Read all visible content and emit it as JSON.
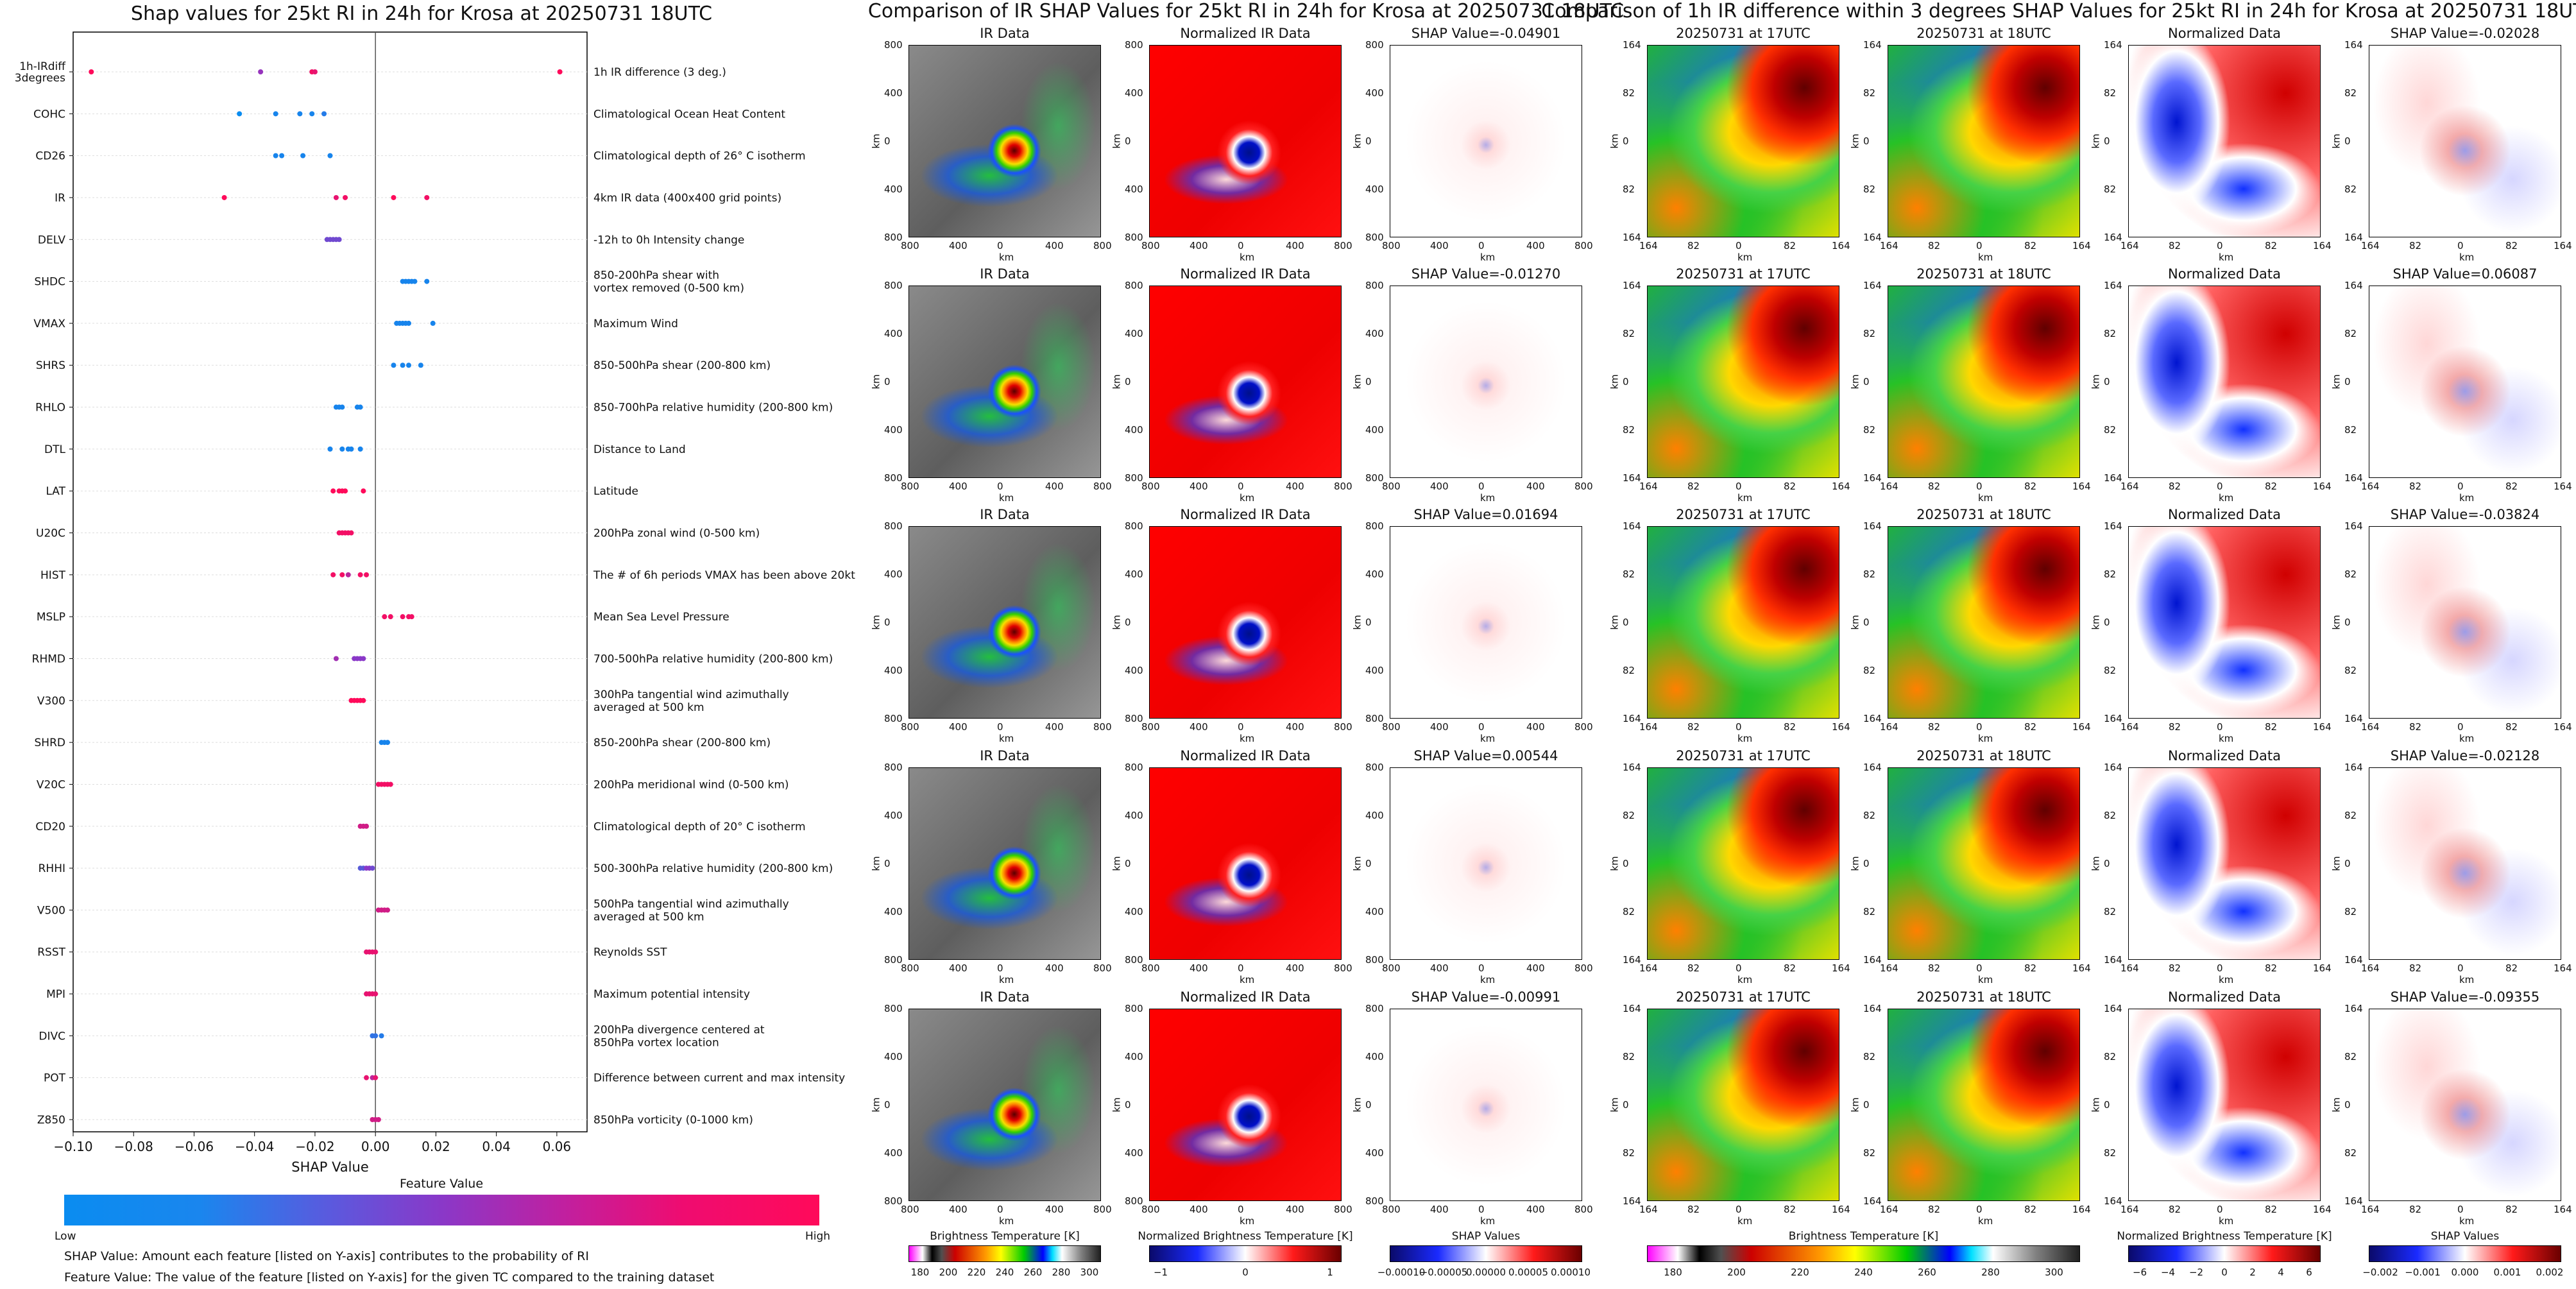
{
  "titles": {
    "left": "Shap values for 25kt RI in 24h for Krosa at 20250731 18UTC",
    "middle": "Comparison of IR SHAP Values for 25kt RI in 24h for Krosa at 20250731 18UTC",
    "right": "Comparison of 1h IR difference within 3 degrees SHAP Values for 25kt RI in 24h for Krosa at 20250731 18UTC"
  },
  "chart_data": [
    {
      "type": "scatter",
      "title": "Shap values for 25kt RI in 24h for Krosa at 20250731 18UTC",
      "xlabel": "SHAP Value",
      "ylabel": "",
      "xlim": [
        -0.1,
        0.07
      ],
      "xticks": [
        "−0.10",
        "−0.08",
        "−0.06",
        "−0.04",
        "−0.02",
        "0.00",
        "0.02",
        "0.04",
        "0.06"
      ],
      "xtick_values": [
        -0.1,
        -0.08,
        -0.06,
        -0.04,
        -0.02,
        0.0,
        0.02,
        0.04,
        0.06
      ],
      "color_low": "#0a8cf0",
      "color_high": "#ff0a5a",
      "features": [
        {
          "name": "1h-IRdiff\n3degrees",
          "desc": "1h IR difference (3 deg.)",
          "points": [
            [
              -0.094,
              1.0
            ],
            [
              -0.038,
              0.55
            ],
            [
              -0.021,
              0.95
            ],
            [
              -0.02,
              0.9
            ],
            [
              0.061,
              1.0
            ]
          ]
        },
        {
          "name": "COHC",
          "desc": "Climatological Ocean Heat Content",
          "points": [
            [
              -0.045,
              0.0
            ],
            [
              -0.033,
              0.05
            ],
            [
              -0.025,
              0.05
            ],
            [
              -0.021,
              0.05
            ],
            [
              -0.017,
              0.1
            ]
          ]
        },
        {
          "name": "CD26",
          "desc": "Climatological depth of 26° C isotherm",
          "points": [
            [
              -0.033,
              0.05
            ],
            [
              -0.031,
              0.05
            ],
            [
              -0.024,
              0.05
            ],
            [
              -0.015,
              0.05
            ]
          ]
        },
        {
          "name": "IR",
          "desc": "4km IR data (400x400 grid points)",
          "points": [
            [
              -0.05,
              1.0
            ],
            [
              -0.013,
              0.9
            ],
            [
              -0.01,
              0.95
            ],
            [
              0.006,
              1.0
            ],
            [
              0.017,
              0.95
            ]
          ]
        },
        {
          "name": "DELV",
          "desc": "-12h to 0h Intensity change",
          "points": [
            [
              -0.016,
              0.4
            ],
            [
              -0.015,
              0.4
            ],
            [
              -0.014,
              0.4
            ],
            [
              -0.013,
              0.4
            ],
            [
              -0.012,
              0.4
            ]
          ]
        },
        {
          "name": "SHDC",
          "desc": "850-200hPa shear with\nvortex removed (0-500 km)",
          "points": [
            [
              0.009,
              0.05
            ],
            [
              0.01,
              0.05
            ],
            [
              0.011,
              0.05
            ],
            [
              0.012,
              0.05
            ],
            [
              0.013,
              0.05
            ],
            [
              0.017,
              0.05
            ]
          ]
        },
        {
          "name": "VMAX",
          "desc": "Maximum Wind",
          "points": [
            [
              0.007,
              0.05
            ],
            [
              0.008,
              0.05
            ],
            [
              0.009,
              0.05
            ],
            [
              0.01,
              0.05
            ],
            [
              0.011,
              0.05
            ],
            [
              0.019,
              0.05
            ]
          ]
        },
        {
          "name": "SHRS",
          "desc": "850-500hPa shear (200-800 km)",
          "points": [
            [
              0.006,
              0.05
            ],
            [
              0.009,
              0.05
            ],
            [
              0.011,
              0.05
            ],
            [
              0.015,
              0.05
            ]
          ]
        },
        {
          "name": "RHLO",
          "desc": "850-700hPa relative humidity (200-800 km)",
          "points": [
            [
              -0.013,
              0.05
            ],
            [
              -0.012,
              0.05
            ],
            [
              -0.011,
              0.05
            ],
            [
              -0.006,
              0.05
            ],
            [
              -0.005,
              0.05
            ]
          ]
        },
        {
          "name": "DTL",
          "desc": "Distance to Land",
          "points": [
            [
              -0.015,
              0.05
            ],
            [
              -0.011,
              0.05
            ],
            [
              -0.009,
              0.05
            ],
            [
              -0.008,
              0.05
            ],
            [
              -0.005,
              0.05
            ]
          ]
        },
        {
          "name": "LAT",
          "desc": "Latitude",
          "points": [
            [
              -0.014,
              1.0
            ],
            [
              -0.012,
              1.0
            ],
            [
              -0.011,
              1.0
            ],
            [
              -0.01,
              1.0
            ],
            [
              -0.004,
              1.0
            ]
          ]
        },
        {
          "name": "U20C",
          "desc": "200hPa zonal wind (0-500 km)",
          "points": [
            [
              -0.012,
              0.95
            ],
            [
              -0.011,
              0.95
            ],
            [
              -0.01,
              0.95
            ],
            [
              -0.009,
              0.95
            ],
            [
              -0.008,
              0.95
            ]
          ]
        },
        {
          "name": "HIST",
          "desc": "The # of 6h periods VMAX has been above 20kt",
          "points": [
            [
              -0.014,
              0.95
            ],
            [
              -0.011,
              0.95
            ],
            [
              -0.009,
              0.7
            ],
            [
              -0.005,
              0.95
            ],
            [
              -0.003,
              0.95
            ]
          ]
        },
        {
          "name": "MSLP",
          "desc": "Mean Sea Level Pressure",
          "points": [
            [
              0.003,
              0.95
            ],
            [
              0.005,
              0.95
            ],
            [
              0.009,
              0.95
            ],
            [
              0.011,
              0.95
            ],
            [
              0.012,
              0.95
            ]
          ]
        },
        {
          "name": "RHMD",
          "desc": "700-500hPa relative humidity (200-800 km)",
          "points": [
            [
              -0.013,
              0.6
            ],
            [
              -0.007,
              0.5
            ],
            [
              -0.006,
              0.5
            ],
            [
              -0.005,
              0.5
            ],
            [
              -0.004,
              0.5
            ]
          ]
        },
        {
          "name": "V300",
          "desc": "300hPa tangential wind azimuthally\naveraged at 500 km",
          "points": [
            [
              -0.008,
              1.0
            ],
            [
              -0.007,
              1.0
            ],
            [
              -0.006,
              1.0
            ],
            [
              -0.005,
              1.0
            ],
            [
              -0.004,
              1.0
            ]
          ]
        },
        {
          "name": "SHRD",
          "desc": "850-200hPa shear (200-800 km)",
          "points": [
            [
              0.002,
              0.05
            ],
            [
              0.003,
              0.05
            ],
            [
              0.004,
              0.05
            ]
          ]
        },
        {
          "name": "V20C",
          "desc": "200hPa meridional wind (0-500 km)",
          "points": [
            [
              0.001,
              0.95
            ],
            [
              0.002,
              0.95
            ],
            [
              0.003,
              0.95
            ],
            [
              0.004,
              0.95
            ],
            [
              0.005,
              0.95
            ]
          ]
        },
        {
          "name": "CD20",
          "desc": "Climatological depth of 20° C isotherm",
          "points": [
            [
              -0.005,
              0.8
            ],
            [
              -0.004,
              0.8
            ],
            [
              -0.003,
              0.8
            ]
          ]
        },
        {
          "name": "RHHI",
          "desc": "500-300hPa relative humidity (200-800 km)",
          "points": [
            [
              -0.005,
              0.3
            ],
            [
              -0.004,
              0.3
            ],
            [
              -0.003,
              0.5
            ],
            [
              -0.002,
              0.5
            ],
            [
              -0.001,
              0.4
            ]
          ]
        },
        {
          "name": "V500",
          "desc": "500hPa tangential wind azimuthally\naveraged at 500 km",
          "points": [
            [
              0.001,
              0.8
            ],
            [
              0.002,
              0.8
            ],
            [
              0.003,
              0.8
            ],
            [
              0.004,
              0.8
            ]
          ]
        },
        {
          "name": "RSST",
          "desc": "Reynolds SST",
          "points": [
            [
              -0.003,
              0.9
            ],
            [
              -0.002,
              0.9
            ],
            [
              -0.001,
              0.9
            ],
            [
              0.0,
              0.9
            ]
          ]
        },
        {
          "name": "MPI",
          "desc": "Maximum potential intensity",
          "points": [
            [
              -0.003,
              0.9
            ],
            [
              -0.002,
              0.9
            ],
            [
              -0.001,
              0.9
            ],
            [
              0.0,
              0.9
            ]
          ]
        },
        {
          "name": "DIVC",
          "desc": "200hPa divergence centered at\n850hPa vortex location",
          "points": [
            [
              -0.001,
              0.15
            ],
            [
              0.0,
              0.15
            ],
            [
              0.002,
              0.1
            ]
          ]
        },
        {
          "name": "POT",
          "desc": "Difference between current and max intensity",
          "points": [
            [
              -0.003,
              0.9
            ],
            [
              -0.001,
              0.7
            ],
            [
              0.0,
              0.9
            ]
          ]
        },
        {
          "name": "Z850",
          "desc": "850hPa vorticity (0-1000 km)",
          "points": [
            [
              -0.001,
              0.8
            ],
            [
              0.0,
              0.8
            ],
            [
              0.001,
              0.8
            ]
          ]
        }
      ]
    },
    {
      "type": "heatmap",
      "title": "Comparison of IR SHAP Values for 25kt RI in 24h for Krosa at 20250731 18UTC",
      "rows": 5,
      "columns": [
        {
          "title": "IR Data",
          "xlabel": "km",
          "ylabel": "km",
          "xticks": [
            "800",
            "400",
            "0",
            "400",
            "800"
          ],
          "yticks": [
            "800",
            "400",
            "0",
            "400",
            "800"
          ],
          "cmap": "ir"
        },
        {
          "title": "Normalized IR Data",
          "xlabel": "km",
          "ylabel": "km",
          "xticks": [
            "800",
            "400",
            "0",
            "400",
            "800"
          ],
          "yticks": [
            "800",
            "400",
            "0",
            "400",
            "800"
          ],
          "cmap": "norm"
        },
        {
          "title_prefix": "SHAP Value=",
          "values": [
            "-0.04901",
            "-0.01270",
            "0.01694",
            "0.00544",
            "-0.00991"
          ],
          "xlabel": "km",
          "ylabel": "km",
          "xticks": [
            "800",
            "400",
            "0",
            "400",
            "800"
          ],
          "yticks": [
            "800",
            "400",
            "0",
            "400",
            "800"
          ],
          "cmap": "shap"
        }
      ],
      "colorbars": [
        {
          "label": "Brightness Temperature [K]",
          "ticks": [
            "180",
            "200",
            "220",
            "240",
            "260",
            "280",
            "300"
          ]
        },
        {
          "label": "Normalized Brightness Temperature [K]",
          "ticks": [
            "−1",
            "0",
            "1"
          ]
        },
        {
          "label": "SHAP Values",
          "ticks": [
            "−0.00010",
            "−0.00005",
            "0.00000",
            "0.00005",
            "0.00010"
          ]
        }
      ]
    },
    {
      "type": "heatmap",
      "title": "Comparison of 1h IR difference within 3 degrees SHAP Values for 25kt RI in 24h for Krosa at 20250731 18UTC",
      "rows": 5,
      "columns": [
        {
          "title": "20250731 at 17UTC",
          "xlabel": "km",
          "ylabel": "km",
          "xticks": [
            "164",
            "82",
            "0",
            "82",
            "164"
          ],
          "yticks": [
            "164",
            "82",
            "0",
            "82",
            "164"
          ],
          "cmap": "ir"
        },
        {
          "title": "20250731 at 18UTC",
          "xlabel": "km",
          "ylabel": "km",
          "xticks": [
            "164",
            "82",
            "0",
            "82",
            "164"
          ],
          "yticks": [
            "164",
            "82",
            "0",
            "82",
            "164"
          ],
          "cmap": "ir"
        },
        {
          "title": "Normalized Data",
          "xlabel": "km",
          "ylabel": "km",
          "xticks": [
            "164",
            "82",
            "0",
            "82",
            "164"
          ],
          "yticks": [
            "164",
            "82",
            "0",
            "82",
            "164"
          ],
          "cmap": "norm"
        },
        {
          "title_prefix": "SHAP Value=",
          "values": [
            "-0.02028",
            "0.06087",
            "-0.03824",
            "-0.02128",
            "-0.09355"
          ],
          "xlabel": "km",
          "ylabel": "km",
          "xticks": [
            "164",
            "82",
            "0",
            "82",
            "164"
          ],
          "yticks": [
            "164",
            "82",
            "0",
            "82",
            "164"
          ],
          "cmap": "shap"
        }
      ],
      "colorbars": [
        {
          "label": "Brightness Temperature [K]",
          "ticks": [
            "180",
            "200",
            "220",
            "240",
            "260",
            "280",
            "300"
          ]
        },
        {
          "label": "Normalized Brightness Temperature [K]",
          "ticks": [
            "−6",
            "−4",
            "−2",
            "0",
            "2",
            "4",
            "6"
          ]
        },
        {
          "label": "SHAP Values",
          "ticks": [
            "−0.002",
            "−0.001",
            "0.000",
            "0.001",
            "0.002"
          ]
        }
      ]
    }
  ],
  "feature_colorbar": {
    "label": "Feature Value",
    "low": "Low",
    "high": "High"
  },
  "notes": {
    "shap_value": "SHAP Value: Amount each feature [listed on Y-axis] contributes to the probability of RI",
    "feature_value": "Feature Value: The value of the feature [listed on Y-axis] for the given TC compared to the training dataset"
  },
  "colors": {
    "low": "#0a8cf0",
    "mid": "#8a38c8",
    "high": "#ff0a5a",
    "norm_pos": "#ff0000",
    "norm_neg": "#0010c8"
  }
}
